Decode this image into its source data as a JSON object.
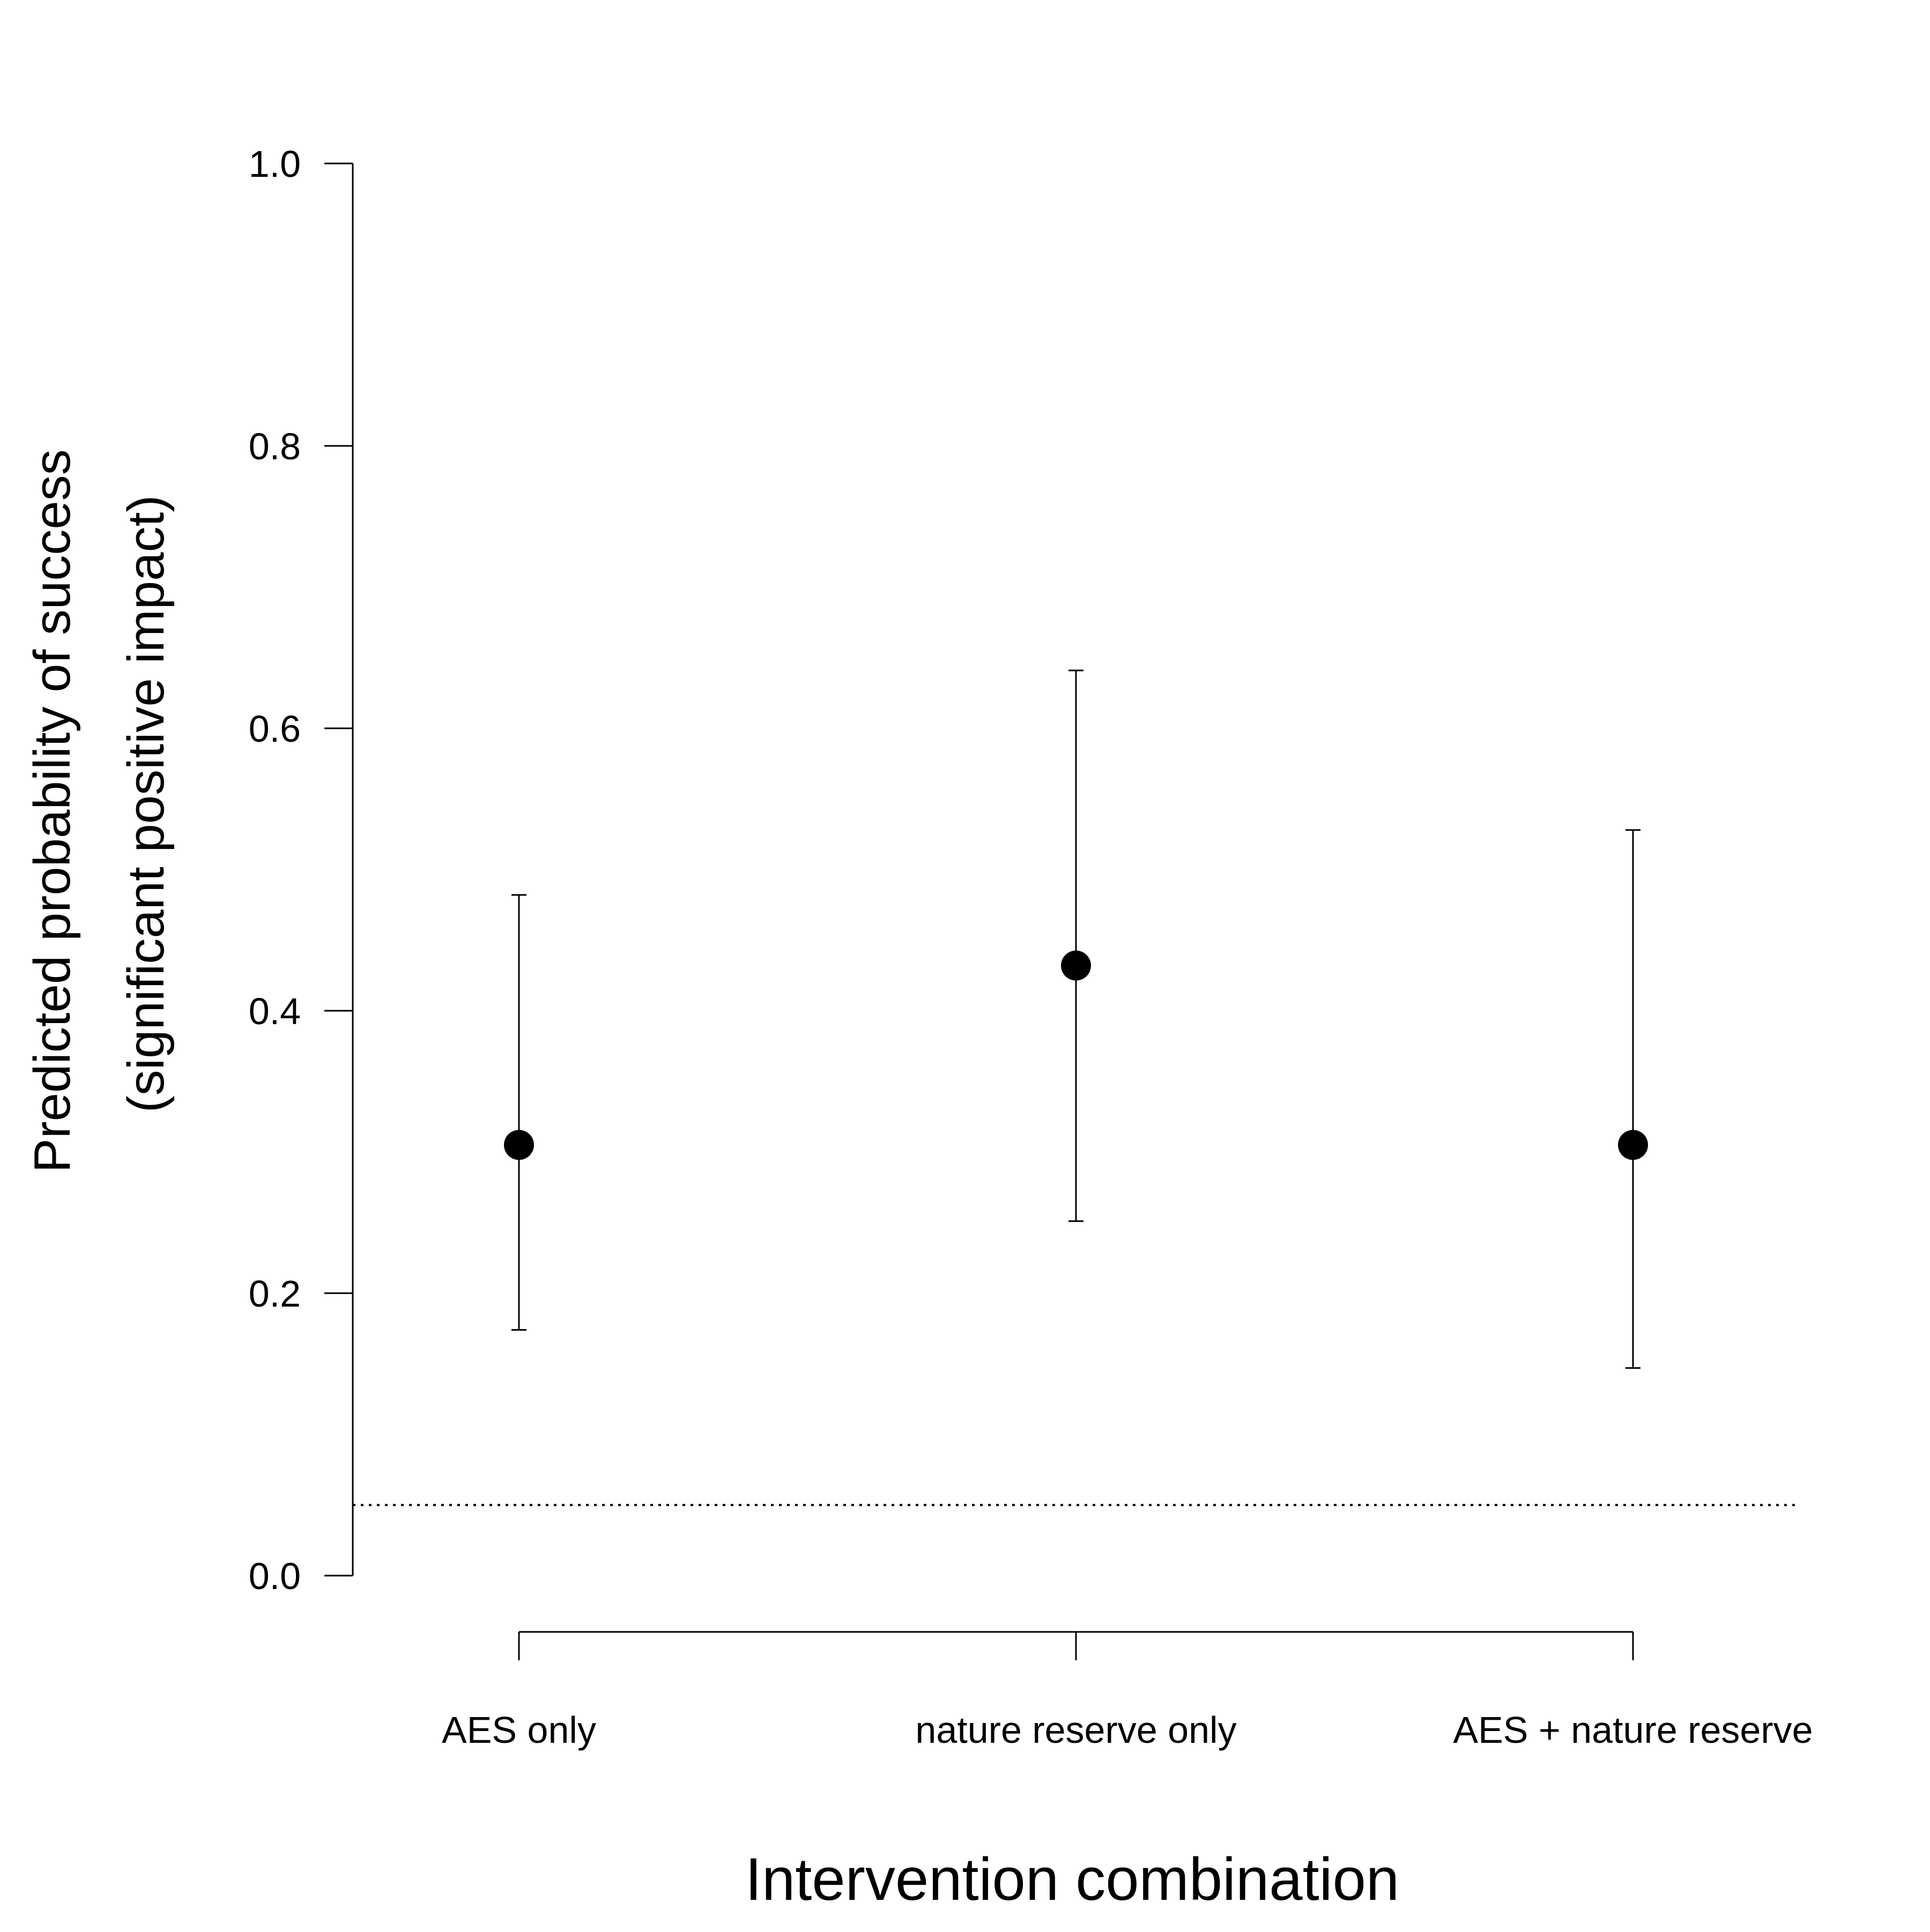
{
  "chart_data": {
    "type": "scatter",
    "subtype": "point-with-error-bars",
    "title": "",
    "xlabel": "Intervention combination",
    "ylabel_lines": [
      "Predicted probability of success",
      "(significant positive impact)"
    ],
    "categories": [
      "AES only",
      "nature reserve only",
      "AES + nature reserve"
    ],
    "series": [
      {
        "values": [
          0.305,
          0.432,
          0.305
        ],
        "lower": [
          0.174,
          0.251,
          0.147
        ],
        "upper": [
          0.482,
          0.641,
          0.528
        ]
      }
    ],
    "ylim": [
      0.0,
      1.0
    ],
    "yticks": [
      "0.0",
      "0.2",
      "0.4",
      "0.6",
      "0.8",
      "1.0"
    ],
    "reference_line": {
      "y": 0.05,
      "style": "dotted"
    },
    "grid": false,
    "legend": "none",
    "colors": {
      "points": "#000000",
      "axes": "#000000",
      "background": "#ffffff"
    }
  }
}
